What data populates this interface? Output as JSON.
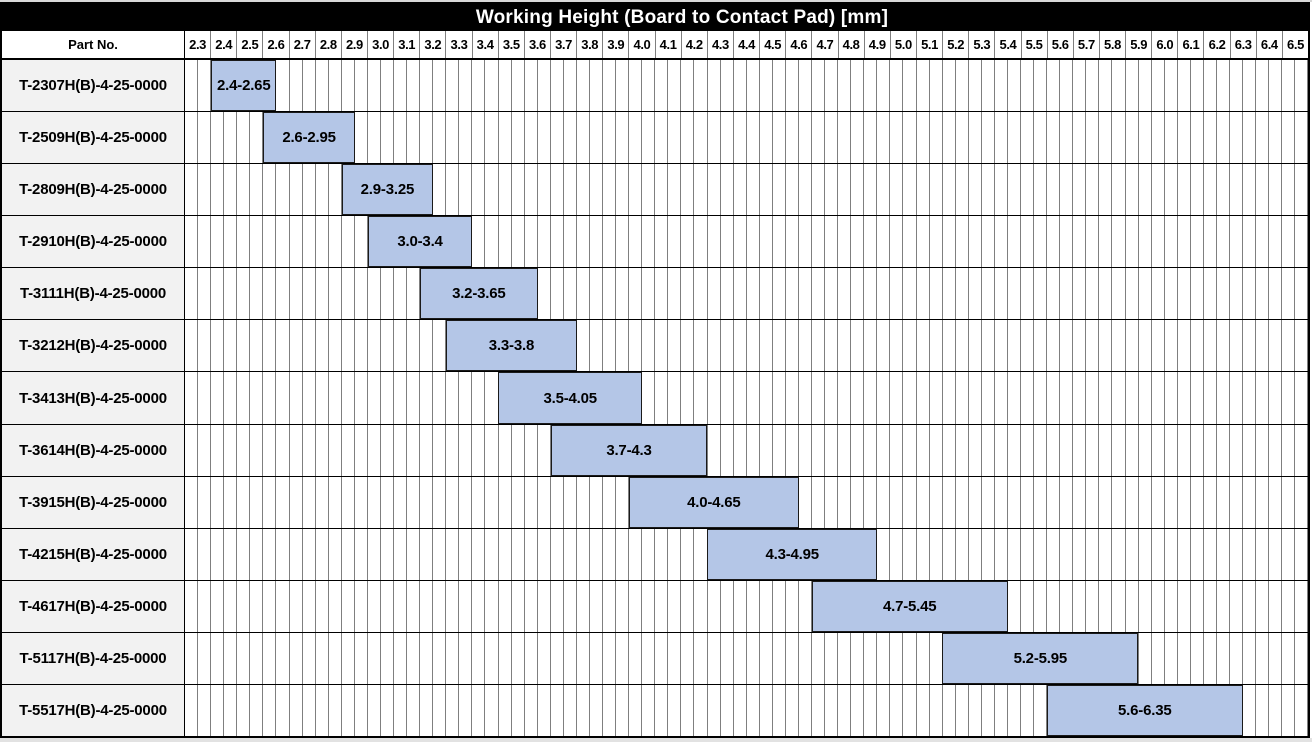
{
  "chart_data": {
    "type": "bar",
    "subtype": "horizontal-range-gantt",
    "title": "Working Height (Board to Contact Pad) [mm]",
    "part_header": "Part No.",
    "x_axis": {
      "min": 2.3,
      "max": 6.6,
      "major_step": 0.1,
      "minor_step": 0.05,
      "tick_labels": [
        "2.3",
        "2.4",
        "2.5",
        "2.6",
        "2.7",
        "2.8",
        "2.9",
        "3.0",
        "3.1",
        "3.2",
        "3.3",
        "3.4",
        "3.5",
        "3.6",
        "3.7",
        "3.8",
        "3.9",
        "4.0",
        "4.1",
        "4.2",
        "4.3",
        "4.4",
        "4.5",
        "4.6",
        "4.7",
        "4.8",
        "4.9",
        "5.0",
        "5.1",
        "5.2",
        "5.3",
        "5.4",
        "5.5",
        "5.6",
        "5.7",
        "5.8",
        "5.9",
        "6.0",
        "6.1",
        "6.2",
        "6.3",
        "6.4",
        "6.5"
      ]
    },
    "grid": "on",
    "legend": "none",
    "rows": [
      {
        "part_no": "T-2307H(B)-4-25-0000",
        "start": 2.4,
        "end": 2.65,
        "label": "2.4-2.65"
      },
      {
        "part_no": "T-2509H(B)-4-25-0000",
        "start": 2.6,
        "end": 2.95,
        "label": "2.6-2.95"
      },
      {
        "part_no": "T-2809H(B)-4-25-0000",
        "start": 2.9,
        "end": 3.25,
        "label": "2.9-3.25"
      },
      {
        "part_no": "T-2910H(B)-4-25-0000",
        "start": 3.0,
        "end": 3.4,
        "label": "3.0-3.4"
      },
      {
        "part_no": "T-3111H(B)-4-25-0000",
        "start": 3.2,
        "end": 3.65,
        "label": "3.2-3.65"
      },
      {
        "part_no": "T-3212H(B)-4-25-0000",
        "start": 3.3,
        "end": 3.8,
        "label": "3.3-3.8"
      },
      {
        "part_no": "T-3413H(B)-4-25-0000",
        "start": 3.5,
        "end": 4.05,
        "label": "3.5-4.05"
      },
      {
        "part_no": "T-3614H(B)-4-25-0000",
        "start": 3.7,
        "end": 4.3,
        "label": "3.7-4.3"
      },
      {
        "part_no": "T-3915H(B)-4-25-0000",
        "start": 4.0,
        "end": 4.65,
        "label": "4.0-4.65"
      },
      {
        "part_no": "T-4215H(B)-4-25-0000",
        "start": 4.3,
        "end": 4.95,
        "label": "4.3-4.95"
      },
      {
        "part_no": "T-4617H(B)-4-25-0000",
        "start": 4.7,
        "end": 5.45,
        "label": "4.7-5.45"
      },
      {
        "part_no": "T-5117H(B)-4-25-0000",
        "start": 5.2,
        "end": 5.95,
        "label": "5.2-5.95"
      },
      {
        "part_no": "T-5517H(B)-4-25-0000",
        "start": 5.6,
        "end": 6.35,
        "label": "5.6-6.35"
      }
    ]
  },
  "colors": {
    "bar_fill": "#b4c6e7",
    "bar_border": "#1a1a1a",
    "grid_line": "#7f7f7f",
    "row_separator": "#000000",
    "part_cell_bg": "#f2f2f2",
    "title_bg": "#000000",
    "title_text": "#ffffff"
  }
}
